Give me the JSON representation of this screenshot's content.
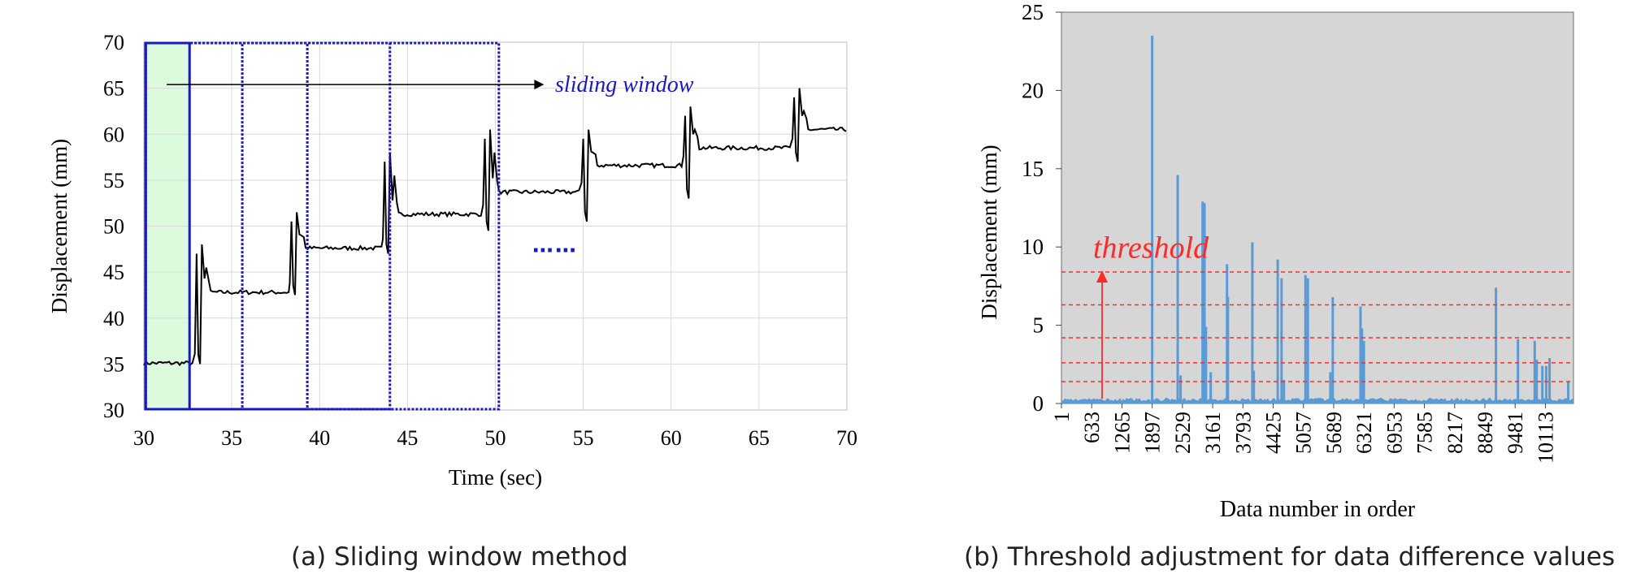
{
  "captions": {
    "a": "(a) Sliding window method",
    "b": "(b) Threshold adjustment for data difference values"
  },
  "colors": {
    "line": "#000000",
    "window": "#1a1ab8",
    "highlight": "#dcfadc",
    "plot_bg_b": "#d6d6d6",
    "bars": "#5b9bd5",
    "threshold": "#ff2a2a",
    "grid": "#d9d9d9"
  },
  "chart_data": [
    {
      "type": "line",
      "xlabel": "Time (sec)",
      "ylabel": "Displacement (mm)",
      "xlim": [
        30,
        70
      ],
      "ylim": [
        30,
        70
      ],
      "xticks": [
        30,
        35,
        40,
        45,
        50,
        55,
        60,
        65,
        70
      ],
      "yticks": [
        30,
        35,
        40,
        45,
        50,
        55,
        60,
        65,
        70
      ],
      "grid": true,
      "annotation": "sliding window",
      "ellipsis": "……",
      "windows": [
        {
          "start": 30.1,
          "end": 32.6
        },
        {
          "start": 30.1,
          "end": 35.6
        },
        {
          "start": 30.1,
          "end": 39.3
        },
        {
          "start": 30.1,
          "end": 44.0
        },
        {
          "start": 30.1,
          "end": 50.2
        }
      ],
      "highlight": {
        "start": 30.1,
        "end": 32.6
      },
      "steps": [
        {
          "start": 30.0,
          "level": 35.1,
          "spike_high": null,
          "spike_low": null
        },
        {
          "start": 33.2,
          "level": 42.8,
          "spike_high": 48.0,
          "spike_low": 35.0
        },
        {
          "start": 38.6,
          "level": 47.6,
          "spike_high": 51.5,
          "spike_low": 42.5
        },
        {
          "start": 43.9,
          "level": 51.3,
          "spike_high": 58.0,
          "spike_low": 47.0
        },
        {
          "start": 49.6,
          "level": 53.7,
          "spike_high": 60.5,
          "spike_low": 49.5
        },
        {
          "start": 55.2,
          "level": 56.6,
          "spike_high": 60.5,
          "spike_low": 50.5
        },
        {
          "start": 61.0,
          "level": 58.5,
          "spike_high": 63.0,
          "spike_low": 53.0
        },
        {
          "start": 67.2,
          "level": 60.5,
          "spike_high": 65.0,
          "spike_low": 57.0
        }
      ]
    },
    {
      "type": "bar",
      "xlabel": "Data number in order",
      "ylabel": "Displacement (mm)",
      "ylim": [
        0,
        25
      ],
      "yticks": [
        0,
        5,
        10,
        15,
        20,
        25
      ],
      "xlim": [
        1,
        10700
      ],
      "xticks": [
        1,
        633,
        1265,
        1897,
        2529,
        3161,
        3793,
        4425,
        5057,
        5689,
        6321,
        6953,
        7585,
        8217,
        8849,
        9481,
        10113
      ],
      "annotation": "threshold",
      "threshold_lines": [
        8.4,
        6.3,
        4.2,
        2.6,
        1.4
      ],
      "spikes": [
        {
          "x": 1897,
          "value": 23.5
        },
        {
          "x": 2430,
          "value": 14.6
        },
        {
          "x": 2490,
          "value": 1.8
        },
        {
          "x": 2950,
          "value": 12.9
        },
        {
          "x": 2990,
          "value": 12.8
        },
        {
          "x": 3020,
          "value": 4.9
        },
        {
          "x": 3120,
          "value": 2.0
        },
        {
          "x": 3460,
          "value": 8.9
        },
        {
          "x": 3480,
          "value": 6.8
        },
        {
          "x": 3990,
          "value": 10.3
        },
        {
          "x": 4020,
          "value": 2.1
        },
        {
          "x": 4520,
          "value": 9.2
        },
        {
          "x": 4600,
          "value": 8.0
        },
        {
          "x": 4650,
          "value": 1.5
        },
        {
          "x": 5100,
          "value": 8.2
        },
        {
          "x": 5150,
          "value": 8.0
        },
        {
          "x": 5620,
          "value": 2.0
        },
        {
          "x": 5670,
          "value": 6.8
        },
        {
          "x": 6250,
          "value": 6.2
        },
        {
          "x": 6280,
          "value": 4.8
        },
        {
          "x": 6320,
          "value": 4.0
        },
        {
          "x": 9080,
          "value": 7.4
        },
        {
          "x": 9540,
          "value": 4.1
        },
        {
          "x": 9890,
          "value": 4.0
        },
        {
          "x": 9930,
          "value": 2.8
        },
        {
          "x": 10050,
          "value": 2.4
        },
        {
          "x": 10130,
          "value": 2.4
        },
        {
          "x": 10200,
          "value": 2.9
        },
        {
          "x": 10590,
          "value": 1.4
        }
      ]
    }
  ]
}
